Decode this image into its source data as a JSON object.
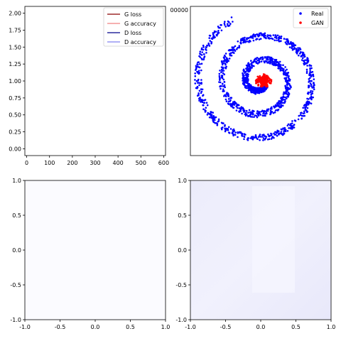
{
  "chart_data": [
    {
      "type": "line",
      "x_ticks": [
        "0",
        "100",
        "200",
        "300",
        "400",
        "500",
        "600"
      ],
      "y_ticks": [
        "0.00",
        "0.25",
        "0.50",
        "0.75",
        "1.00",
        "1.25",
        "1.50",
        "1.75",
        "2.00"
      ],
      "xlim": [
        -8,
        608
      ],
      "ylim": [
        -0.1,
        2.1
      ],
      "legend_position": "top-right",
      "series": [
        {
          "name": "G loss",
          "color": "#8b0000",
          "values": []
        },
        {
          "name": "G accuracy",
          "color": "#f08080",
          "values": []
        },
        {
          "name": "D loss",
          "color": "#00008b",
          "values": []
        },
        {
          "name": "D accuracy",
          "color": "#8080f0",
          "values": []
        }
      ]
    },
    {
      "type": "scatter",
      "x_tick_label_partial": "00000",
      "legend_position": "top-right",
      "series": [
        {
          "name": "Real",
          "color": "#0000ff"
        },
        {
          "name": "GAN",
          "color": "#ff0000"
        }
      ]
    },
    {
      "type": "heatmap",
      "x_ticks": [
        "-1.0",
        "-0.5",
        "0.0",
        "0.5",
        "1.0"
      ],
      "y_ticks": [
        "-1.0",
        "-0.5",
        "0.0",
        "0.5",
        "1.0"
      ],
      "xlim": [
        -1,
        1
      ],
      "ylim": [
        -1,
        1
      ]
    },
    {
      "type": "heatmap",
      "x_ticks": [
        "-1.0",
        "-0.5",
        "0.0",
        "0.5",
        "1.0"
      ],
      "y_ticks": [
        "-1.0",
        "-0.5",
        "0.0",
        "0.5",
        "1.0"
      ],
      "xlim": [
        -1,
        1
      ],
      "ylim": [
        -1,
        1
      ]
    }
  ]
}
